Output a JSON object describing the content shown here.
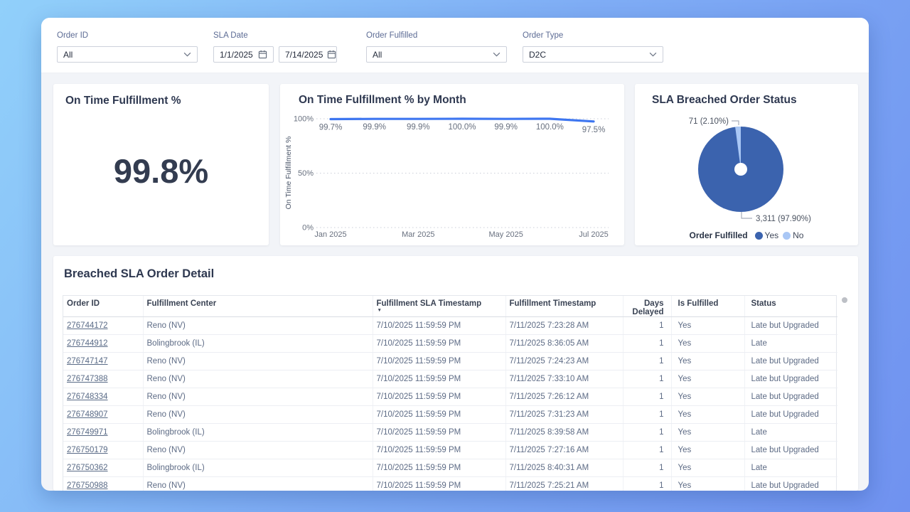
{
  "filters": {
    "order_id": {
      "label": "Order ID",
      "value": "All"
    },
    "sla_date": {
      "label": "SLA Date",
      "start": "1/1/2025",
      "end": "7/14/2025"
    },
    "order_fulfilled": {
      "label": "Order Fulfilled",
      "value": "All"
    },
    "order_type": {
      "label": "Order Type",
      "value": "D2C"
    }
  },
  "kpi": {
    "title": "On Time Fulfillment %",
    "value": "99.8%"
  },
  "chart_data": [
    {
      "type": "line",
      "title": "On Time Fulfillment % by Month",
      "x": [
        "Jan 2025",
        "Feb 2025",
        "Mar 2025",
        "Apr 2025",
        "May 2025",
        "Jun 2025",
        "Jul 2025"
      ],
      "values": [
        99.7,
        99.9,
        99.9,
        100.0,
        99.9,
        100.0,
        97.5
      ],
      "data_labels": [
        "99.7%",
        "99.9%",
        "99.9%",
        "100.0%",
        "99.9%",
        "100.0%",
        "97.5%"
      ],
      "xlabel": "",
      "ylabel": "On Time Fulfillment %",
      "ylim": [
        0,
        100
      ],
      "yticks": [
        {
          "label": "0%",
          "value": 0
        },
        {
          "label": "50%",
          "value": 50
        },
        {
          "label": "100%",
          "value": 100
        }
      ],
      "xticks": [
        {
          "label": "Jan 2025",
          "index": 0
        },
        {
          "label": "Mar 2025",
          "index": 2
        },
        {
          "label": "May 2025",
          "index": 4
        },
        {
          "label": "Jul 2025",
          "index": 6
        }
      ],
      "line_color": "#3E76F0",
      "grid": "dotted horizontal"
    },
    {
      "type": "pie",
      "title": "SLA Breached Order Status",
      "legend_title": "Order Fulfilled",
      "legend_position": "bottom",
      "slices": [
        {
          "name": "Yes",
          "value": 3311,
          "pct": 97.9,
          "label": "3,311 (97.90%)",
          "color": "#3B63AE"
        },
        {
          "name": "No",
          "value": 71,
          "pct": 2.1,
          "label": "71 (2.10%)",
          "color": "#A9C7F5"
        }
      ]
    }
  ],
  "table": {
    "title": "Breached SLA Order Detail",
    "columns": [
      "Order ID",
      "Fulfillment Center",
      "Fulfillment SLA Timestamp",
      "Fulfillment Timestamp",
      "Days Delayed",
      "Is Fulfilled",
      "Status"
    ],
    "sort": {
      "column": "Fulfillment SLA Timestamp",
      "direction": "desc"
    },
    "rows": [
      [
        "276744172",
        "Reno (NV)",
        "7/10/2025 11:59:59 PM",
        "7/11/2025 7:23:28 AM",
        "1",
        "Yes",
        "Late but Upgraded"
      ],
      [
        "276744912",
        "Bolingbrook (IL)",
        "7/10/2025 11:59:59 PM",
        "7/11/2025 8:36:05 AM",
        "1",
        "Yes",
        "Late"
      ],
      [
        "276747147",
        "Reno (NV)",
        "7/10/2025 11:59:59 PM",
        "7/11/2025 7:24:23 AM",
        "1",
        "Yes",
        "Late but Upgraded"
      ],
      [
        "276747388",
        "Reno (NV)",
        "7/10/2025 11:59:59 PM",
        "7/11/2025 7:33:10 AM",
        "1",
        "Yes",
        "Late but Upgraded"
      ],
      [
        "276748334",
        "Reno (NV)",
        "7/10/2025 11:59:59 PM",
        "7/11/2025 7:26:12 AM",
        "1",
        "Yes",
        "Late but Upgraded"
      ],
      [
        "276748907",
        "Reno (NV)",
        "7/10/2025 11:59:59 PM",
        "7/11/2025 7:31:23 AM",
        "1",
        "Yes",
        "Late but Upgraded"
      ],
      [
        "276749971",
        "Bolingbrook (IL)",
        "7/10/2025 11:59:59 PM",
        "7/11/2025 8:39:58 AM",
        "1",
        "Yes",
        "Late"
      ],
      [
        "276750179",
        "Reno (NV)",
        "7/10/2025 11:59:59 PM",
        "7/11/2025 7:27:16 AM",
        "1",
        "Yes",
        "Late but Upgraded"
      ],
      [
        "276750362",
        "Bolingbrook (IL)",
        "7/10/2025 11:59:59 PM",
        "7/11/2025 8:40:31 AM",
        "1",
        "Yes",
        "Late"
      ],
      [
        "276750988",
        "Reno (NV)",
        "7/10/2025 11:59:59 PM",
        "7/11/2025 7:25:21 AM",
        "1",
        "Yes",
        "Late but Upgraded"
      ]
    ]
  }
}
